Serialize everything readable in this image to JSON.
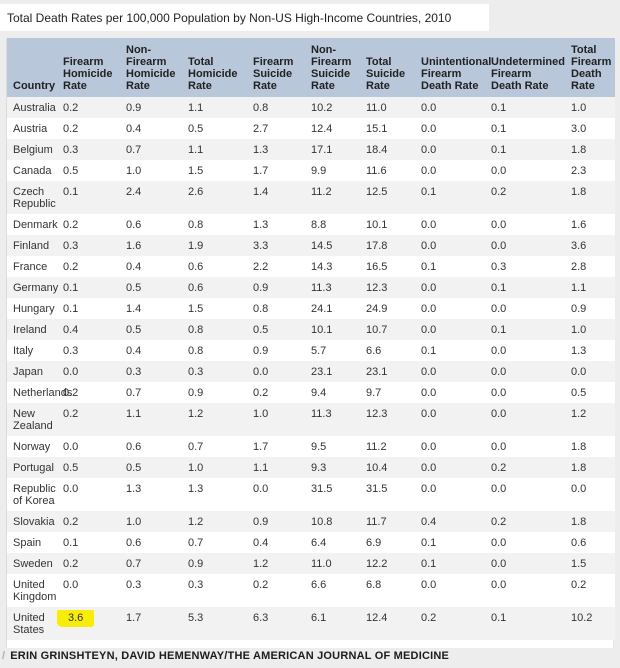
{
  "header": {
    "title": "Total Death Rates per 100,000 Population by Non-US High-Income Countries, 2010"
  },
  "footer": {
    "credit_slash": "/",
    "credit_text": "ERIN GRINSHTEYN, DAVID HEMENWAY/THE AMERICAN JOURNAL OF MEDICINE"
  },
  "colors": {
    "page_background": "#ededed",
    "header_background": "#b8c7da",
    "row_alt_background": "#f2f2f2",
    "highlight_yellow": "#f8ec0a"
  },
  "chart_data": {
    "type": "table",
    "title": "Total Death Rates per 100,000 Population by Non-US High-Income Countries, 2010",
    "columns": [
      "Country",
      "Firearm Homicide Rate",
      "Non-Firearm Homicide Rate",
      "Total Homicide Rate",
      "Firearm Suicide Rate",
      "Non-Firearm Suicide Rate",
      "Total Suicide Rate",
      "Unintentional Firearm Death Rate",
      "Undetermined Firearm Death Rate",
      "Total Firearm Death Rate"
    ],
    "rows": [
      {
        "country": "Australia",
        "values": [
          "0.2",
          "0.9",
          "1.1",
          "0.8",
          "10.2",
          "11.0",
          "0.0",
          "0.1",
          "1.0"
        ]
      },
      {
        "country": "Austria",
        "values": [
          "0.2",
          "0.4",
          "0.5",
          "2.7",
          "12.4",
          "15.1",
          "0.0",
          "0.1",
          "3.0"
        ]
      },
      {
        "country": "Belgium",
        "values": [
          "0.3",
          "0.7",
          "1.1",
          "1.3",
          "17.1",
          "18.4",
          "0.0",
          "0.1",
          "1.8"
        ]
      },
      {
        "country": "Canada",
        "values": [
          "0.5",
          "1.0",
          "1.5",
          "1.7",
          "9.9",
          "11.6",
          "0.0",
          "0.0",
          "2.3"
        ]
      },
      {
        "country": "Czech Republic",
        "values": [
          "0.1",
          "2.4",
          "2.6",
          "1.4",
          "11.2",
          "12.5",
          "0.1",
          "0.2",
          "1.8"
        ]
      },
      {
        "country": "Denmark",
        "values": [
          "0.2",
          "0.6",
          "0.8",
          "1.3",
          "8.8",
          "10.1",
          "0.0",
          "0.0",
          "1.6"
        ]
      },
      {
        "country": "Finland",
        "values": [
          "0.3",
          "1.6",
          "1.9",
          "3.3",
          "14.5",
          "17.8",
          "0.0",
          "0.0",
          "3.6"
        ]
      },
      {
        "country": "France",
        "values": [
          "0.2",
          "0.4",
          "0.6",
          "2.2",
          "14.3",
          "16.5",
          "0.1",
          "0.3",
          "2.8"
        ]
      },
      {
        "country": "Germany",
        "values": [
          "0.1",
          "0.5",
          "0.6",
          "0.9",
          "11.3",
          "12.3",
          "0.0",
          "0.1",
          "1.1"
        ]
      },
      {
        "country": "Hungary",
        "values": [
          "0.1",
          "1.4",
          "1.5",
          "0.8",
          "24.1",
          "24.9",
          "0.0",
          "0.0",
          "0.9"
        ]
      },
      {
        "country": "Ireland",
        "values": [
          "0.4",
          "0.5",
          "0.8",
          "0.5",
          "10.1",
          "10.7",
          "0.0",
          "0.1",
          "1.0"
        ]
      },
      {
        "country": "Italy",
        "values": [
          "0.3",
          "0.4",
          "0.8",
          "0.9",
          "5.7",
          "6.6",
          "0.1",
          "0.0",
          "1.3"
        ]
      },
      {
        "country": "Japan",
        "values": [
          "0.0",
          "0.3",
          "0.3",
          "0.0",
          "23.1",
          "23.1",
          "0.0",
          "0.0",
          "0.0"
        ]
      },
      {
        "country": "Netherlands",
        "values": [
          "0.2",
          "0.7",
          "0.9",
          "0.2",
          "9.4",
          "9.7",
          "0.0",
          "0.0",
          "0.5"
        ]
      },
      {
        "country": "New Zealand",
        "values": [
          "0.2",
          "1.1",
          "1.2",
          "1.0",
          "11.3",
          "12.3",
          "0.0",
          "0.0",
          "1.2"
        ]
      },
      {
        "country": "Norway",
        "values": [
          "0.0",
          "0.6",
          "0.7",
          "1.7",
          "9.5",
          "11.2",
          "0.0",
          "0.0",
          "1.8"
        ]
      },
      {
        "country": "Portugal",
        "values": [
          "0.5",
          "0.5",
          "1.0",
          "1.1",
          "9.3",
          "10.4",
          "0.0",
          "0.2",
          "1.8"
        ]
      },
      {
        "country": "Republic of Korea",
        "values": [
          "0.0",
          "1.3",
          "1.3",
          "0.0",
          "31.5",
          "31.5",
          "0.0",
          "0.0",
          "0.0"
        ]
      },
      {
        "country": "Slovakia",
        "values": [
          "0.2",
          "1.0",
          "1.2",
          "0.9",
          "10.8",
          "11.7",
          "0.4",
          "0.2",
          "1.8"
        ]
      },
      {
        "country": "Spain",
        "values": [
          "0.1",
          "0.6",
          "0.7",
          "0.4",
          "6.4",
          "6.9",
          "0.1",
          "0.0",
          "0.6"
        ]
      },
      {
        "country": "Sweden",
        "values": [
          "0.2",
          "0.7",
          "0.9",
          "1.2",
          "11.0",
          "12.2",
          "0.1",
          "0.0",
          "1.5"
        ]
      },
      {
        "country": "United Kingdom",
        "values": [
          "0.0",
          "0.3",
          "0.3",
          "0.2",
          "6.6",
          "6.8",
          "0.0",
          "0.0",
          "0.2"
        ]
      },
      {
        "country": "United States",
        "values": [
          "3.6",
          "1.7",
          "5.3",
          "6.3",
          "6.1",
          "12.4",
          "0.2",
          "0.1",
          "10.2"
        ]
      }
    ],
    "highlight": {
      "row_index": 22,
      "col_index": 0,
      "note": "yellow highlighter marker over United States firearm homicide rate"
    },
    "layout": {
      "zebra_striping": true,
      "header_align": "bottom",
      "first_odd_row_shaded": true
    }
  }
}
